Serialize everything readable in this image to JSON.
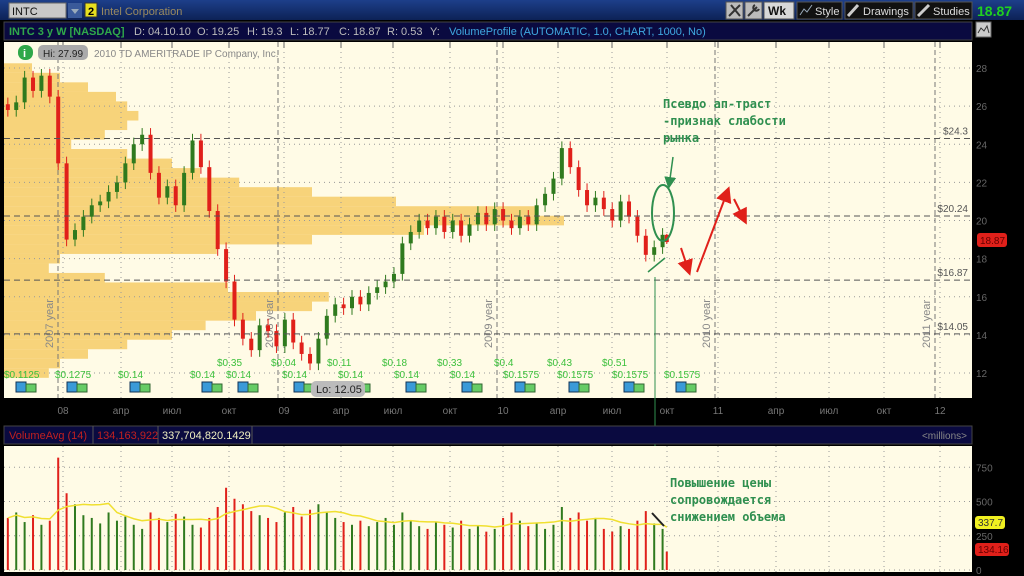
{
  "toolbar": {
    "symbol": "INTC",
    "link_group": "2",
    "company": "Intel Corporation",
    "aggregation": "Wk",
    "style": "Style",
    "drawings": "Drawings",
    "studies": "Studies",
    "last_price": "18.87",
    "icons": [
      "tools-icon",
      "wrench-icon",
      "style-icon",
      "pencil-icon",
      "studies-icon"
    ]
  },
  "header": {
    "title": "INTC 3 y W [NASDAQ]",
    "date": "D: 04.10.10",
    "open": "O: 19.25",
    "high": "H: 19.3",
    "low": "L: 18.77",
    "close": "C: 18.87",
    "range": "R: 0.53",
    "y": "Y:",
    "study": "VolumeProfile (AUTOMATIC, 1.0, CHART, 1000, No)"
  },
  "plot": {
    "copyright": "2010 TD AMERITRADE IP Company, Inc.",
    "hi_label": "Hi: 27.99",
    "lo_label": "Lo: 12.05",
    "price_tag": "18.87",
    "levels": [
      "$24.3",
      "$20.24",
      "$16.87",
      "$14.05"
    ],
    "year_labels": [
      "2007 year",
      "2008 year",
      "2009 year",
      "2010 year",
      "2011 year"
    ],
    "dividends": [
      "$0.1125",
      "$0.1275",
      "$0.14",
      "$0.14",
      "$0.14",
      "$0.14",
      "$0.14",
      "$0.14",
      "$0.14",
      "$0.1575",
      "$0.1575",
      "$0.1575",
      "$0.1575"
    ],
    "earnings": [
      "$0.35",
      "$0.04",
      "$0.11",
      "$0.18",
      "$0.33",
      "$0.4",
      "$0.43",
      "$0.51"
    ],
    "annotation_top": [
      "Псевдо ап-траст",
      "-признак слабости",
      "рынка"
    ],
    "annotation_bottom": [
      "Повышение цены",
      "сопровождается",
      "снижением объема"
    ]
  },
  "time_axis": [
    "08",
    "апр",
    "июл",
    "окт",
    "09",
    "апр",
    "июл",
    "окт",
    "10",
    "апр",
    "июл",
    "окт",
    "11",
    "апр",
    "июл",
    "окт",
    "12"
  ],
  "volume": {
    "study": "VolumeAvg (14)",
    "value": "134,163,922",
    "avg": "337,704,820.1429",
    "units": "<millions>",
    "avg_tag": "337.7",
    "vol_tag": "134.16",
    "ticks": [
      "750",
      "500",
      "250",
      "0"
    ]
  },
  "colors": {
    "up": "#2f7a1e",
    "down": "#e0201a",
    "profile": "#f7d37a",
    "background": "#fffbe6",
    "avg_line": "#f0e030",
    "annotation": "#2f8f4f",
    "arrows": "#e0201a"
  },
  "chart_data": {
    "type": "candlestick",
    "title": "INTC 3 y W [NASDAQ]",
    "y_ticks": [
      12,
      14,
      16,
      18,
      20,
      22,
      24,
      26,
      28
    ],
    "ylim": [
      11,
      29
    ],
    "grid": true,
    "x": [
      "2007-10-01",
      "2007-10-15",
      "2007-10-29",
      "2007-11-12",
      "2007-11-26",
      "2007-12-10",
      "2007-12-24",
      "2008-01-07",
      "2008-01-21",
      "2008-02-04",
      "2008-02-18",
      "2008-03-03",
      "2008-03-17",
      "2008-03-31",
      "2008-04-14",
      "2008-04-28",
      "2008-05-12",
      "2008-05-26",
      "2008-06-09",
      "2008-06-23",
      "2008-07-07",
      "2008-07-21",
      "2008-08-04",
      "2008-08-18",
      "2008-09-01",
      "2008-09-15",
      "2008-09-29",
      "2008-10-13",
      "2008-10-27",
      "2008-11-10",
      "2008-11-24",
      "2008-12-08",
      "2008-12-22",
      "2009-01-05",
      "2009-01-19",
      "2009-02-02",
      "2009-02-16",
      "2009-03-02",
      "2009-03-16",
      "2009-03-30",
      "2009-04-13",
      "2009-04-27",
      "2009-05-11",
      "2009-05-25",
      "2009-06-08",
      "2009-06-22",
      "2009-07-06",
      "2009-07-20",
      "2009-08-03",
      "2009-08-17",
      "2009-08-31",
      "2009-09-14",
      "2009-09-28",
      "2009-10-12",
      "2009-10-26",
      "2009-11-09",
      "2009-11-23",
      "2009-12-07",
      "2009-12-21",
      "2010-01-04",
      "2010-01-18",
      "2010-02-01",
      "2010-02-15",
      "2010-03-01",
      "2010-03-15",
      "2010-03-29",
      "2010-04-12",
      "2010-04-26",
      "2010-05-10",
      "2010-05-24",
      "2010-06-07",
      "2010-06-21",
      "2010-07-05",
      "2010-07-19",
      "2010-08-02",
      "2010-08-16",
      "2010-08-30",
      "2010-09-13",
      "2010-09-27",
      "2010-10-04"
    ],
    "close": [
      25.8,
      26.2,
      27.5,
      26.8,
      27.6,
      26.5,
      23.0,
      19.0,
      19.5,
      20.2,
      20.8,
      21.0,
      21.5,
      22.0,
      23.0,
      24.0,
      24.5,
      22.5,
      21.2,
      21.8,
      20.8,
      22.5,
      24.2,
      22.8,
      20.5,
      18.5,
      16.8,
      14.8,
      13.8,
      13.2,
      14.5,
      14.2,
      13.4,
      14.8,
      13.6,
      13.0,
      12.5,
      13.8,
      15.0,
      15.6,
      15.4,
      16.0,
      15.6,
      16.2,
      16.5,
      16.8,
      17.2,
      18.8,
      19.4,
      20.0,
      19.6,
      20.2,
      19.4,
      20.0,
      19.2,
      19.8,
      20.4,
      19.8,
      20.6,
      20.0,
      19.6,
      20.2,
      19.8,
      20.8,
      21.4,
      22.2,
      23.8,
      22.8,
      21.6,
      20.8,
      21.2,
      20.6,
      20.0,
      21.0,
      20.2,
      19.2,
      18.2,
      18.6,
      19.25,
      18.87
    ],
    "last_bar": {
      "open": 19.25,
      "high": 19.3,
      "low": 18.77,
      "close": 18.87
    },
    "high": 27.99,
    "low": 12.05,
    "volume_millions": [
      380,
      420,
      350,
      400,
      330,
      360,
      820,
      560,
      480,
      400,
      380,
      340,
      420,
      360,
      390,
      330,
      300,
      420,
      380,
      350,
      410,
      390,
      330,
      310,
      380,
      460,
      600,
      520,
      480,
      430,
      400,
      380,
      350,
      420,
      460,
      390,
      440,
      480,
      420,
      380,
      350,
      330,
      360,
      320,
      350,
      380,
      330,
      420,
      360,
      320,
      300,
      350,
      330,
      310,
      360,
      300,
      320,
      280,
      300,
      380,
      420,
      360,
      320,
      340,
      300,
      330,
      460,
      380,
      420,
      360,
      380,
      300,
      280,
      320,
      300,
      360,
      430,
      340,
      300,
      134
    ],
    "volume_avg_millions": 337.7,
    "volume_ylim": [
      0,
      800
    ],
    "volume_profile": {
      "price": [
        12,
        12.5,
        13,
        13.5,
        14,
        14.5,
        15,
        15.5,
        16,
        16.5,
        17,
        17.5,
        18,
        18.5,
        19,
        19.5,
        20,
        20.5,
        21,
        21.5,
        22,
        22.5,
        23,
        23.5,
        24,
        24.5,
        25,
        25.5,
        26,
        26.5,
        27,
        27.5,
        28
      ],
      "relative_volume": [
        8,
        10,
        15,
        22,
        30,
        36,
        45,
        55,
        58,
        40,
        18,
        8,
        10,
        38,
        55,
        75,
        100,
        95,
        70,
        55,
        42,
        35,
        30,
        22,
        12,
        18,
        22,
        24,
        22,
        20,
        15,
        10,
        5
      ]
    },
    "levels": [
      24.3,
      20.24,
      16.87,
      14.05
    ]
  }
}
